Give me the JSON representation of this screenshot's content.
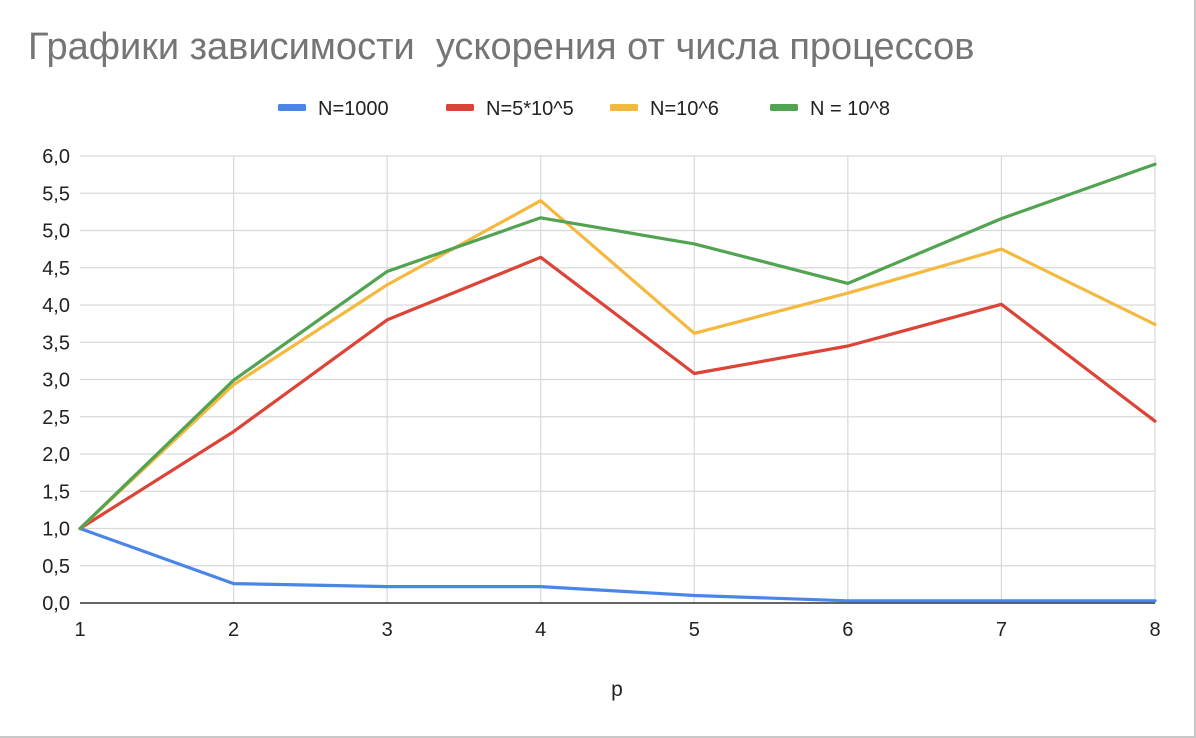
{
  "chart_data": {
    "type": "line",
    "title": "Графики зависимости  ускорения от числа процессов",
    "xlabel": "p",
    "ylabel": "",
    "x": [
      1,
      2,
      3,
      4,
      5,
      6,
      7,
      8
    ],
    "x_tick_labels": [
      "1",
      "2",
      "3",
      "4",
      "5",
      "6",
      "7",
      "8"
    ],
    "ylim": [
      0,
      6
    ],
    "y_tick_labels": [
      "0,0",
      "0,5",
      "1,0",
      "1,5",
      "2,0",
      "2,5",
      "3,0",
      "3,5",
      "4,0",
      "4,5",
      "5,0",
      "5,5",
      "6,0"
    ],
    "grid": true,
    "legend_position": "top",
    "series": [
      {
        "name": "N=1000",
        "color": "#4a86e8",
        "values": [
          1.0,
          0.26,
          0.22,
          0.22,
          0.1,
          0.03,
          0.03,
          0.03
        ]
      },
      {
        "name": "N=5*10^5",
        "color": "#db4437",
        "values": [
          1.0,
          2.3,
          3.8,
          4.64,
          3.08,
          3.45,
          4.01,
          2.44
        ]
      },
      {
        "name": "N=10^6",
        "color": "#f4b93e",
        "values": [
          1.0,
          2.93,
          4.27,
          5.4,
          3.62,
          4.16,
          4.75,
          3.74
        ]
      },
      {
        "name": "N = 10^8",
        "color": "#52a352",
        "values": [
          1.0,
          2.99,
          4.45,
          5.17,
          4.82,
          4.29,
          5.16,
          5.89
        ]
      }
    ]
  }
}
